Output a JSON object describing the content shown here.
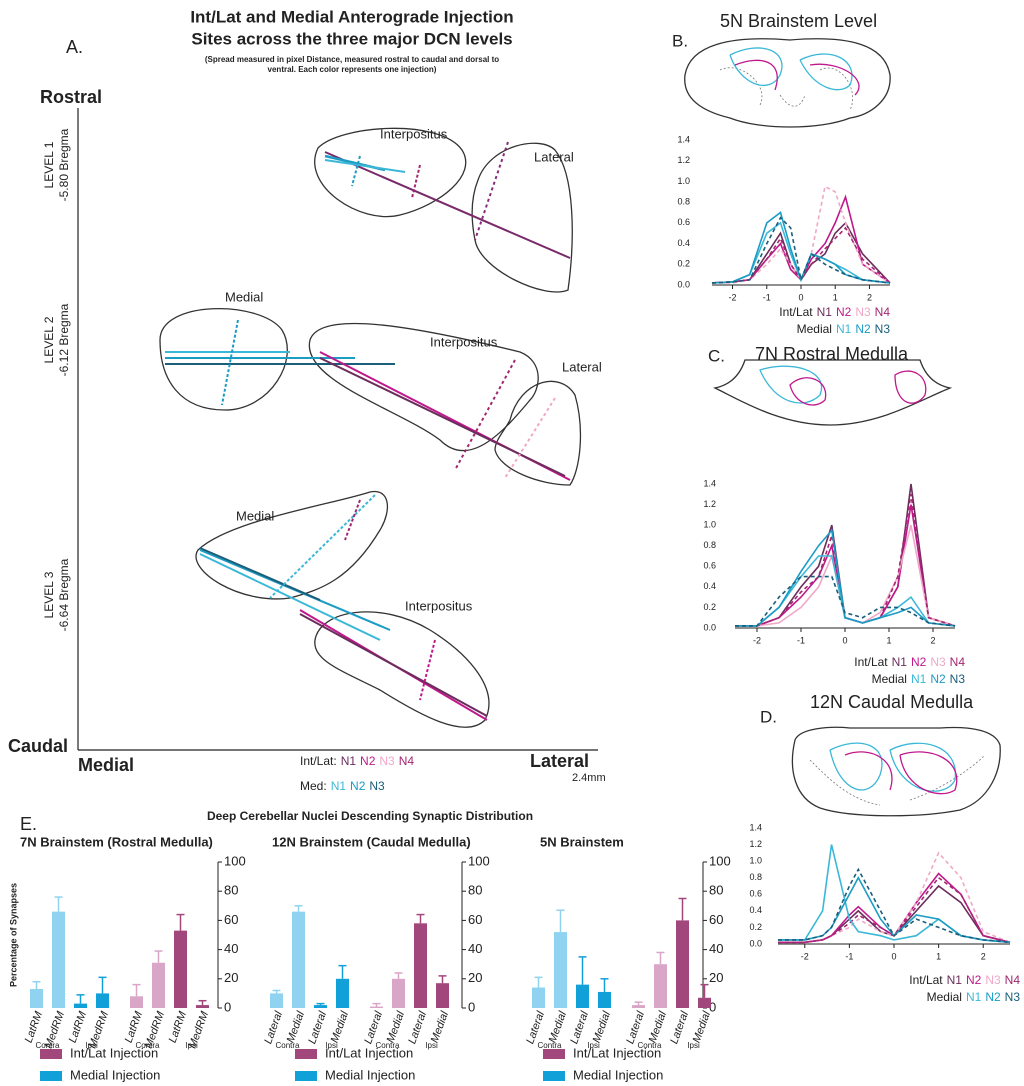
{
  "panel_a": {
    "letter": "A.",
    "title": [
      "Int/Lat and Medial Anterograde Injection",
      "Sites across the three major DCN levels"
    ],
    "subtitle": [
      "(Spread measured in pixel Distance, measured rostral to caudal and dorsal to",
      "ventral. Each color represents one injection)"
    ],
    "axis": {
      "rostral": "Rostral",
      "caudal": "Caudal",
      "medial": "Medial",
      "lateral": "Lateral",
      "scale": "2.4mm"
    },
    "levels": [
      {
        "name": "LEVEL 1",
        "bregma": "-5.80 Bregma"
      },
      {
        "name": "LEVEL 2",
        "bregma": "-6.12 Bregma"
      },
      {
        "name": "LEVEL 3",
        "bregma": "-6.64 Bregma"
      }
    ],
    "regions": [
      "Interpositus",
      "Lateral",
      "Medial",
      "Interpositus",
      "Lateral",
      "Medial",
      "Interpositus"
    ],
    "legend": [
      {
        "label": "Int/Lat:",
        "items": [
          {
            "name": "N1",
            "color": "#6b2d5c"
          },
          {
            "name": "N2",
            "color": "#c0188c"
          },
          {
            "name": "N3",
            "color": "#f0a8c8"
          },
          {
            "name": "N4",
            "color": "#a3266e"
          }
        ]
      },
      {
        "label": "Med:",
        "items": [
          {
            "name": "N1",
            "color": "#3bb8d8"
          },
          {
            "name": "N2",
            "color": "#1b9cc4"
          },
          {
            "name": "N3",
            "color": "#1a5e7a"
          }
        ]
      }
    ]
  },
  "panel_e": {
    "letter": "E.",
    "title": "Deep Cerebellar Nuclei Descending Synaptic Distribution"
  },
  "chart_data": [
    {
      "type": "line",
      "letter": "B.",
      "title": "5N Brainstem Level",
      "x": [
        -2.6,
        -2,
        -1.5,
        -1,
        -0.6,
        -0.3,
        0,
        0.3,
        0.7,
        1,
        1.3,
        1.8,
        2.6
      ],
      "xlim": [
        -2.6,
        2.6
      ],
      "xticks": [
        -2,
        -1,
        0,
        1,
        2
      ],
      "ylim": [
        0,
        1.4
      ],
      "yticks": [
        {
          "value": 0,
          "label": "0.0"
        },
        0.2,
        0.4,
        0.6,
        0.8,
        {
          "value": 1,
          "label": "1.0"
        },
        1.2,
        1.4
      ],
      "groups": [
        {
          "name": "Int/Lat",
          "series": [
            {
              "name": "N1",
              "color": "#6b2d5c",
              "style": "solid",
              "values": [
                0.02,
                0.03,
                0.05,
                0.3,
                0.5,
                0.2,
                0.05,
                0.2,
                0.3,
                0.5,
                0.6,
                0.3,
                0.02
              ]
            },
            {
              "name": "N2",
              "color": "#c0188c",
              "style": "solid",
              "values": [
                0.02,
                0.03,
                0.05,
                0.25,
                0.4,
                0.15,
                0.05,
                0.25,
                0.4,
                0.6,
                0.85,
                0.2,
                0.02
              ]
            },
            {
              "name": "N3",
              "color": "#f0a8c8",
              "style": "dashed",
              "values": [
                0.02,
                0.02,
                0.05,
                0.2,
                0.35,
                0.2,
                0.05,
                0.3,
                0.95,
                0.9,
                0.6,
                0.2,
                0.02
              ]
            },
            {
              "name": "N4",
              "color": "#a3266e",
              "style": "dashed",
              "values": [
                0.02,
                0.03,
                0.05,
                0.25,
                0.45,
                0.2,
                0.05,
                0.2,
                0.35,
                0.45,
                0.55,
                0.25,
                0.02
              ]
            }
          ]
        },
        {
          "name": "Medial",
          "series": [
            {
              "name": "N1",
              "color": "#3bb8d8",
              "style": "solid",
              "values": [
                0.02,
                0.03,
                0.1,
                0.5,
                0.6,
                0.3,
                0.05,
                0.3,
                0.25,
                0.2,
                0.15,
                0.05,
                0.02
              ]
            },
            {
              "name": "N2",
              "color": "#1b9cc4",
              "style": "solid",
              "values": [
                0.02,
                0.03,
                0.1,
                0.6,
                0.7,
                0.35,
                0.05,
                0.3,
                0.25,
                0.2,
                0.1,
                0.05,
                0.02
              ]
            },
            {
              "name": "N3",
              "color": "#1a5e7a",
              "style": "dashed",
              "values": [
                0.02,
                0.03,
                0.05,
                0.4,
                0.65,
                0.55,
                0.05,
                0.3,
                0.2,
                0.15,
                0.1,
                0.05,
                0.02
              ]
            }
          ]
        }
      ]
    },
    {
      "type": "line",
      "letter": "C.",
      "title": "7N Rostral Medulla",
      "x": [
        -2.5,
        -2,
        -1.5,
        -1,
        -0.6,
        -0.3,
        0,
        0.4,
        0.8,
        1.2,
        1.5,
        1.9,
        2.5
      ],
      "xlim": [
        -2.5,
        2.5
      ],
      "xticks": [
        -2,
        -1,
        0,
        1,
        2
      ],
      "ylim": [
        0,
        1.4
      ],
      "yticks": [
        {
          "value": 0,
          "label": "0.0"
        },
        0.2,
        0.4,
        0.6,
        0.8,
        {
          "value": 1,
          "label": "1.0"
        },
        1.2,
        1.4
      ],
      "groups": [
        {
          "name": "Int/Lat",
          "series": [
            {
              "name": "N1",
              "color": "#6b2d5c",
              "style": "solid",
              "values": [
                0.02,
                0.02,
                0.1,
                0.4,
                0.6,
                1.0,
                0.1,
                0.05,
                0.1,
                0.4,
                1.4,
                0.1,
                0.02
              ]
            },
            {
              "name": "N2",
              "color": "#c0188c",
              "style": "solid",
              "values": [
                0.02,
                0.02,
                0.1,
                0.3,
                0.5,
                0.8,
                0.1,
                0.05,
                0.1,
                0.4,
                1.2,
                0.1,
                0.02
              ]
            },
            {
              "name": "N3",
              "color": "#f0a8c8",
              "style": "solid",
              "values": [
                0.02,
                0.02,
                0.05,
                0.2,
                0.4,
                0.7,
                0.1,
                0.05,
                0.15,
                0.5,
                1.0,
                0.1,
                0.02
              ]
            },
            {
              "name": "N4",
              "color": "#a3266e",
              "style": "dashed",
              "values": [
                0.02,
                0.02,
                0.1,
                0.35,
                0.5,
                0.9,
                0.1,
                0.05,
                0.1,
                0.5,
                1.3,
                0.1,
                0.02
              ]
            }
          ]
        },
        {
          "name": "Medial",
          "series": [
            {
              "name": "N1",
              "color": "#3bb8d8",
              "style": "solid",
              "values": [
                0.02,
                0.02,
                0.2,
                0.5,
                0.7,
                0.7,
                0.1,
                0.05,
                0.1,
                0.2,
                0.3,
                0.05,
                0.02
              ]
            },
            {
              "name": "N2",
              "color": "#1b9cc4",
              "style": "solid",
              "values": [
                0.02,
                0.02,
                0.2,
                0.55,
                0.8,
                0.95,
                0.1,
                0.05,
                0.1,
                0.15,
                0.2,
                0.05,
                0.02
              ]
            },
            {
              "name": "N3",
              "color": "#1a5e7a",
              "style": "dashed",
              "values": [
                0.02,
                0.02,
                0.3,
                0.5,
                0.5,
                0.5,
                0.15,
                0.1,
                0.2,
                0.2,
                0.15,
                0.05,
                0.02
              ]
            }
          ]
        }
      ]
    },
    {
      "type": "line",
      "letter": "D.",
      "title": "12N Caudal Medulla",
      "x": [
        -2.6,
        -2,
        -1.6,
        -1.4,
        -1,
        -0.8,
        -0.3,
        0,
        0.5,
        1,
        1.5,
        2,
        2.6
      ],
      "xlim": [
        -2.6,
        2.6
      ],
      "xticks": [
        -2,
        -1,
        0,
        1,
        2
      ],
      "ylim": [
        0,
        1.4
      ],
      "yticks": [
        {
          "value": 0,
          "label": "0.0"
        },
        0.2,
        0.4,
        0.6,
        0.8,
        {
          "value": 1,
          "label": "1.0"
        },
        1.2,
        1.4
      ],
      "groups": [
        {
          "name": "Int/Lat",
          "series": [
            {
              "name": "N1",
              "color": "#6b2d5c",
              "style": "solid",
              "values": [
                0.02,
                0.02,
                0.05,
                0.1,
                0.3,
                0.4,
                0.15,
                0.1,
                0.4,
                0.7,
                0.5,
                0.1,
                0.02
              ]
            },
            {
              "name": "N2",
              "color": "#c0188c",
              "style": "solid",
              "values": [
                0.02,
                0.02,
                0.05,
                0.1,
                0.35,
                0.45,
                0.2,
                0.1,
                0.5,
                0.85,
                0.6,
                0.1,
                0.02
              ]
            },
            {
              "name": "N3",
              "color": "#f0a8c8",
              "style": "dashed",
              "values": [
                0.02,
                0.02,
                0.05,
                0.1,
                0.2,
                0.3,
                0.15,
                0.1,
                0.5,
                1.1,
                0.8,
                0.15,
                0.02
              ]
            },
            {
              "name": "N4",
              "color": "#a3266e",
              "style": "dashed",
              "values": [
                0.02,
                0.02,
                0.05,
                0.1,
                0.25,
                0.35,
                0.2,
                0.1,
                0.45,
                0.8,
                0.6,
                0.1,
                0.02
              ]
            }
          ]
        },
        {
          "name": "Medial",
          "series": [
            {
              "name": "N1",
              "color": "#3bb8d8",
              "style": "solid",
              "values": [
                0.05,
                0.05,
                0.4,
                1.2,
                0.3,
                0.15,
                0.1,
                0.05,
                0.1,
                0.3,
                0.1,
                0.05,
                0.02
              ]
            },
            {
              "name": "N2",
              "color": "#1b9cc4",
              "style": "solid",
              "values": [
                0.05,
                0.05,
                0.1,
                0.2,
                0.6,
                0.8,
                0.3,
                0.1,
                0.35,
                0.3,
                0.1,
                0.05,
                0.02
              ]
            },
            {
              "name": "N3",
              "color": "#1a5e7a",
              "style": "dashed",
              "values": [
                0.05,
                0.05,
                0.1,
                0.2,
                0.7,
                0.9,
                0.4,
                0.1,
                0.3,
                0.2,
                0.1,
                0.05,
                0.02
              ]
            }
          ]
        }
      ]
    },
    {
      "type": "bar",
      "title": "7N Brainstem (Rostral Medulla)",
      "ylabel": "Percentage of Synapses",
      "categories": [
        "LatRM",
        "MedRM",
        "LatRM",
        "MedRM",
        "LatRM",
        "MedRM",
        "LatRM",
        "MedRM"
      ],
      "values": [
        13,
        66,
        3,
        10,
        8,
        31,
        53,
        2
      ],
      "errors": [
        5,
        10,
        6,
        11,
        8,
        8,
        11,
        3
      ],
      "colors": [
        "#8fd3f0",
        "#8fd3f0",
        "#12a0d8",
        "#12a0d8",
        "#d9a6c8",
        "#d9a6c8",
        "#a2477c",
        "#a2477c"
      ],
      "group_labels": [
        {
          "label": "Contra",
          "color": "#8fd3f0"
        },
        {
          "label": "Ipsi",
          "color": "#12a0d8"
        },
        {
          "label": "Contra",
          "color": "#d9a6c8"
        },
        {
          "label": "Ipsi",
          "color": "#a2477c"
        }
      ],
      "ylim": [
        0,
        100
      ],
      "yticks": [
        0,
        20,
        40,
        60,
        80,
        100
      ],
      "legend": [
        {
          "label": "Int/Lat Injection",
          "color": "#a2477c"
        },
        {
          "label": "Medial Injection",
          "color": "#12a0d8"
        }
      ]
    },
    {
      "type": "bar",
      "title": "12N Brainstem (Caudal Medulla)",
      "categories": [
        "Lateral",
        "Medial",
        "Lateral",
        "Medial",
        "Lateral",
        "Medial",
        "Lateral",
        "Medial"
      ],
      "values": [
        10,
        66,
        2,
        20,
        1,
        20,
        58,
        17
      ],
      "errors": [
        2,
        4,
        1,
        9,
        2,
        4,
        6,
        5
      ],
      "colors": [
        "#8fd3f0",
        "#8fd3f0",
        "#12a0d8",
        "#12a0d8",
        "#d9a6c8",
        "#d9a6c8",
        "#a2477c",
        "#a2477c"
      ],
      "group_labels": [
        {
          "label": "Contra",
          "color": "#8fd3f0"
        },
        {
          "label": "Ipsi",
          "color": "#12a0d8"
        },
        {
          "label": "Contra",
          "color": "#d9a6c8"
        },
        {
          "label": "Ipsi",
          "color": "#a2477c"
        }
      ],
      "ylim": [
        0,
        100
      ],
      "yticks": [
        0,
        20,
        40,
        60,
        80,
        100
      ],
      "legend": [
        {
          "label": "Int/Lat Injection",
          "color": "#a2477c"
        },
        {
          "label": "Medial Injection",
          "color": "#12a0d8"
        }
      ]
    },
    {
      "type": "bar",
      "title": "5N Brainstem",
      "categories": [
        "Lateral",
        "Medial",
        "Lateral",
        "Medial",
        "Lateral",
        "Medial",
        "Lateral",
        "Medial"
      ],
      "values": [
        14,
        52,
        16,
        11,
        2,
        30,
        60,
        7
      ],
      "errors": [
        7,
        15,
        19,
        9,
        2,
        8,
        15,
        9
      ],
      "colors": [
        "#8fd3f0",
        "#8fd3f0",
        "#12a0d8",
        "#12a0d8",
        "#d9a6c8",
        "#d9a6c8",
        "#a2477c",
        "#a2477c"
      ],
      "group_labels": [
        {
          "label": "Contra",
          "color": "#8fd3f0"
        },
        {
          "label": "Ipsi",
          "color": "#12a0d8"
        },
        {
          "label": "Contra",
          "color": "#d9a6c8"
        },
        {
          "label": "Ipsi",
          "color": "#a2477c"
        }
      ],
      "ylim": [
        0,
        100
      ],
      "yticks": [
        0,
        20,
        40,
        60,
        80,
        100
      ],
      "legend": [
        {
          "label": "Int/Lat Injection",
          "color": "#a2477c"
        },
        {
          "label": "Medial Injection",
          "color": "#12a0d8"
        }
      ]
    }
  ]
}
